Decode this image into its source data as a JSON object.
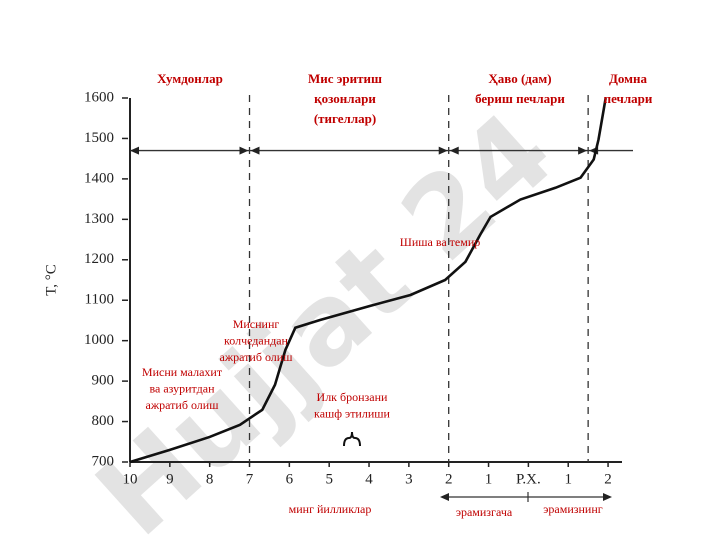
{
  "chart_data": {
    "type": "line",
    "watermark": "Hujjat 24",
    "y_label": "T, °C",
    "x_bottom_labels": [
      "минг йилликлар",
      "эрамизгача",
      "эрамизнинг"
    ],
    "region_labels": [
      {
        "lines": [
          "Хумдонлар"
        ]
      },
      {
        "lines": [
          "Мис эритиш",
          "қозонлари",
          "(тигеллар)"
        ]
      },
      {
        "lines": [
          "Ҳаво (дам)",
          "бериш  печлари"
        ]
      },
      {
        "lines": [
          "Домна",
          "печлари"
        ]
      }
    ],
    "annotations": [
      {
        "lines": [
          "Шиша ва темир"
        ]
      },
      {
        "lines": [
          "Миснинг",
          "колчедандан",
          "ажратиб олиш"
        ]
      },
      {
        "lines": [
          "Мисни малахит",
          "ва азуритдан",
          "ажратиб олиш"
        ]
      },
      {
        "lines": [
          "Илк бронзани",
          "кашф этилиши"
        ]
      }
    ],
    "series": [
      {
        "color": "#111111",
        "x": [
          -10,
          -9,
          -8,
          -7.24,
          -6.68,
          -6.36,
          -6.1,
          -5.85,
          -5.23,
          -3.97,
          -2.96,
          -2.09,
          -1.58,
          -1.21,
          -0.95,
          -0.2,
          0.68,
          1.31,
          1.64,
          1.76,
          1.89,
          1.94
        ],
        "values": [
          700,
          730,
          762,
          792,
          829,
          891,
          977,
          1032,
          1051,
          1086,
          1113,
          1150,
          1195,
          1262,
          1306,
          1349,
          1378,
          1403,
          1448,
          1497,
          1571,
          1600
        ]
      }
    ],
    "hline": 1470,
    "vlines": [
      -7,
      -2,
      1.5
    ],
    "xlim": [
      -10,
      2.35
    ],
    "ylim": [
      700,
      1600
    ],
    "xticks": [
      {
        "value": -10,
        "label": "10"
      },
      {
        "value": -9,
        "label": "9"
      },
      {
        "value": -8,
        "label": "8"
      },
      {
        "value": -7,
        "label": "7"
      },
      {
        "value": -6,
        "label": "6"
      },
      {
        "value": -5,
        "label": "5"
      },
      {
        "value": -4,
        "label": "4"
      },
      {
        "value": -3,
        "label": "3"
      },
      {
        "value": -2,
        "label": "2"
      },
      {
        "value": -1,
        "label": "1"
      },
      {
        "value": 0,
        "label": "Р.Х."
      },
      1,
      2
    ],
    "yticks": [
      700,
      800,
      900,
      1000,
      1100,
      1200,
      1300,
      1400,
      1500,
      1600
    ]
  }
}
